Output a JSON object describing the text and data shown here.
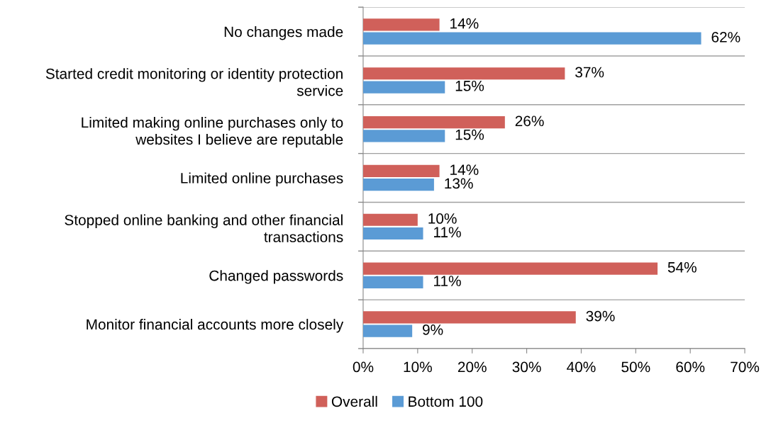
{
  "chart_data": {
    "type": "bar",
    "orientation": "horizontal",
    "categories": [
      "No changes made",
      "Started credit monitoring or identity protection\nservice",
      "Limited making online purchases only to\nwebsites I believe are reputable",
      "Limited online purchases",
      "Stopped online banking and other financial\ntransactions",
      "Changed passwords",
      "Monitor financial accounts more closely"
    ],
    "series": [
      {
        "name": "Overall",
        "color": "#d0605a",
        "values": [
          14,
          37,
          26,
          14,
          10,
          54,
          39
        ],
        "value_labels": [
          "14%",
          "37%",
          "26%",
          "14%",
          "10%",
          "54%",
          "39%"
        ]
      },
      {
        "name": "Bottom 100",
        "color": "#5b9bd5",
        "values": [
          62,
          15,
          15,
          13,
          11,
          11,
          9
        ],
        "value_labels": [
          "62%",
          "15%",
          "15%",
          "13%",
          "11%",
          "11%",
          "9%"
        ]
      }
    ],
    "xlim": [
      0,
      70
    ],
    "xticks": [
      {
        "value": 0,
        "label": "0%"
      },
      {
        "value": 10,
        "label": "10%"
      },
      {
        "value": 20,
        "label": "20%"
      },
      {
        "value": 30,
        "label": "30%"
      },
      {
        "value": 40,
        "label": "40%"
      },
      {
        "value": 50,
        "label": "50%"
      },
      {
        "value": 60,
        "label": "60%"
      },
      {
        "value": 70,
        "label": "70%"
      }
    ],
    "grid": "y",
    "legend": "bottom"
  }
}
